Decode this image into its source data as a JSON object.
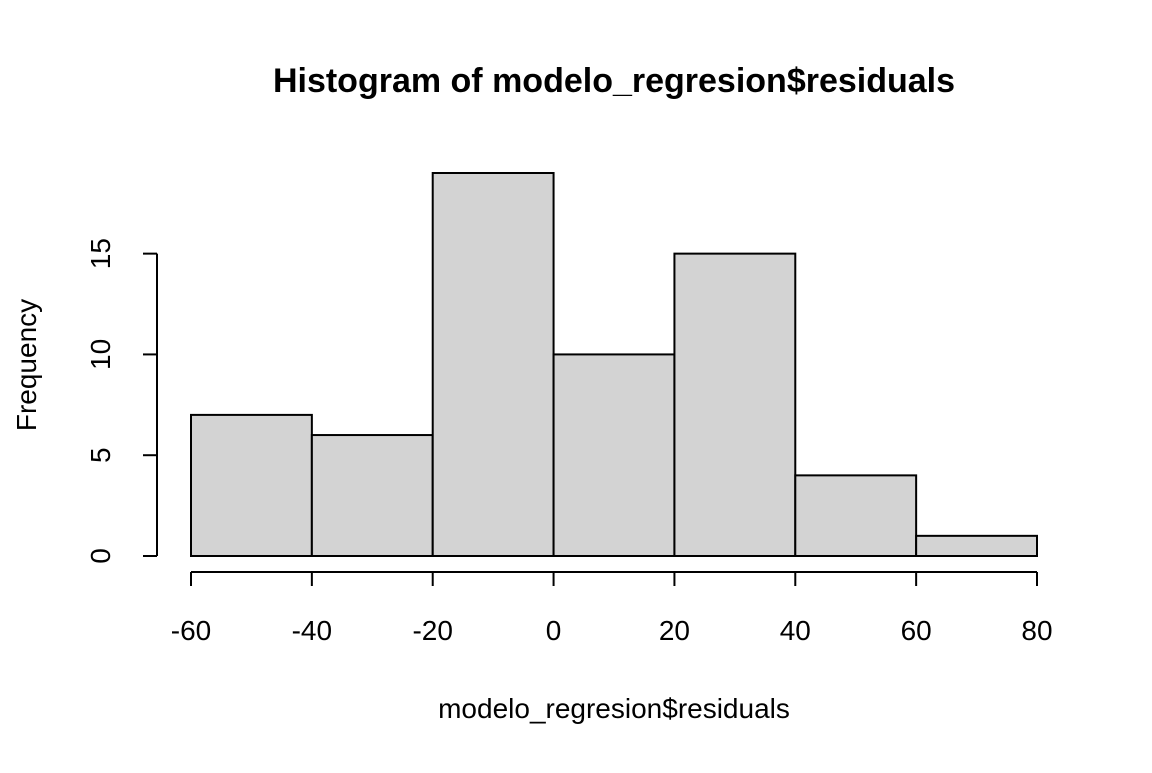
{
  "chart_data": {
    "type": "bar",
    "title": "Histogram of modelo_regresion$residuals",
    "xlabel": "modelo_regresion$residuals",
    "ylabel": "Frequency",
    "bins": [
      {
        "start": -60,
        "end": -40,
        "count": 7
      },
      {
        "start": -40,
        "end": -20,
        "count": 6
      },
      {
        "start": -20,
        "end": 0,
        "count": 19
      },
      {
        "start": 0,
        "end": 20,
        "count": 10
      },
      {
        "start": 20,
        "end": 40,
        "count": 15
      },
      {
        "start": 40,
        "end": 60,
        "count": 4
      },
      {
        "start": 60,
        "end": 80,
        "count": 1
      }
    ],
    "xlim": [
      -60,
      80
    ],
    "ylim": [
      0,
      19
    ],
    "x_ticks": [
      -60,
      -40,
      -20,
      0,
      20,
      40,
      60,
      80
    ],
    "y_ticks": [
      0,
      5,
      10,
      15
    ],
    "grid": false,
    "colors": {
      "bar_fill": "#d3d3d3",
      "bar_stroke": "#000000"
    }
  }
}
